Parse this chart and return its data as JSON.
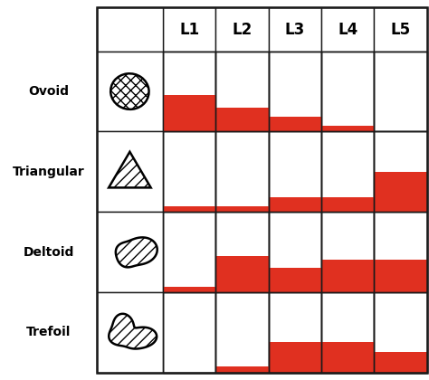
{
  "rows": [
    "Ovoid",
    "Triangular",
    "Deltoid",
    "Trefoil"
  ],
  "cols": [
    "L1",
    "L2",
    "L3",
    "L4",
    "L5"
  ],
  "red_fractions": [
    [
      0.45,
      0.3,
      0.18,
      0.07,
      0.0
    ],
    [
      0.07,
      0.07,
      0.18,
      0.18,
      0.5
    ],
    [
      0.07,
      0.45,
      0.3,
      0.4,
      0.4
    ],
    [
      0.0,
      0.07,
      0.38,
      0.38,
      0.25
    ]
  ],
  "red_color": "#e03020",
  "grid_line_color": "#1a1a1a",
  "bg_color": "#ffffff",
  "shape_icons": [
    "ovoid",
    "triangular",
    "deltoid",
    "trefoil"
  ],
  "header_fontsize": 12,
  "label_fontsize": 10,
  "label_fontweight": "bold"
}
